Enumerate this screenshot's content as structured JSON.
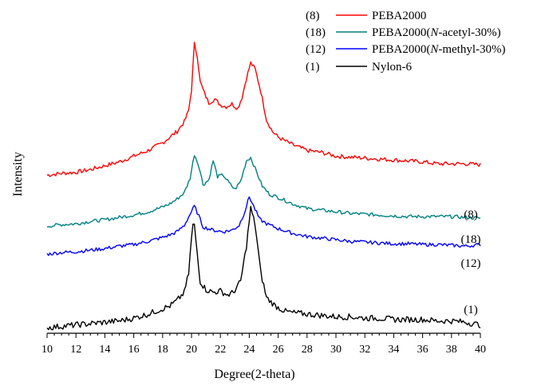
{
  "chart_data": {
    "type": "line",
    "title": "",
    "xlabel": "Degree(2-theta)",
    "ylabel": "Intensity",
    "xlim": [
      10,
      40
    ],
    "xticks": [
      10,
      12,
      14,
      16,
      18,
      20,
      22,
      24,
      26,
      28,
      30,
      32,
      34,
      36,
      38,
      40
    ],
    "ylim": [
      0,
      100
    ],
    "y_ticks_shown": false,
    "grid": false,
    "legend_position": "top-right",
    "series": [
      {
        "id": "8",
        "legend_number": "(8)",
        "curve_label": "(8)",
        "name": "PEBA2000",
        "name_parts": [
          {
            "text": "PEBA2000",
            "italic": false
          }
        ],
        "color": "#ff0000",
        "points": [
          [
            10,
            31
          ],
          [
            11,
            32
          ],
          [
            12,
            32.5
          ],
          [
            13,
            34
          ],
          [
            14,
            36
          ],
          [
            15,
            38
          ],
          [
            16,
            41
          ],
          [
            17,
            44
          ],
          [
            18,
            48
          ],
          [
            18.5,
            51
          ],
          [
            19,
            54
          ],
          [
            19.5,
            59
          ],
          [
            19.8,
            65
          ],
          [
            20.0,
            76
          ],
          [
            20.2,
            100
          ],
          [
            20.4,
            94
          ],
          [
            20.6,
            80
          ],
          [
            20.9,
            74
          ],
          [
            21.2,
            69
          ],
          [
            21.6,
            71
          ],
          [
            22.0,
            68
          ],
          [
            22.4,
            67
          ],
          [
            22.8,
            68.5
          ],
          [
            23.2,
            66
          ],
          [
            23.5,
            72
          ],
          [
            23.8,
            82
          ],
          [
            24.1,
            90
          ],
          [
            24.4,
            87
          ],
          [
            24.8,
            75
          ],
          [
            25.2,
            60
          ],
          [
            25.6,
            54
          ],
          [
            26,
            51
          ],
          [
            27,
            47
          ],
          [
            28,
            44
          ],
          [
            29,
            43
          ],
          [
            30,
            41
          ],
          [
            31,
            40.5
          ],
          [
            32,
            40
          ],
          [
            33,
            39.5
          ],
          [
            34,
            39
          ],
          [
            35,
            38.5
          ],
          [
            36,
            38
          ],
          [
            37,
            37
          ],
          [
            38,
            37
          ],
          [
            39,
            37
          ],
          [
            40,
            36.5
          ]
        ]
      },
      {
        "id": "18",
        "legend_number": "(18)",
        "curve_label": "(18)",
        "name": "PEBA2000(N-acetyl-30%)",
        "name_parts": [
          {
            "text": "PEBA2000(",
            "italic": false
          },
          {
            "text": "N",
            "italic": true
          },
          {
            "text": "-acetyl-30%)",
            "italic": false
          }
        ],
        "color": "#008080",
        "points": [
          [
            10,
            22
          ],
          [
            11,
            23
          ],
          [
            12,
            23.5
          ],
          [
            13,
            25
          ],
          [
            14,
            26
          ],
          [
            15,
            27.5
          ],
          [
            16,
            29
          ],
          [
            17,
            31
          ],
          [
            18,
            34
          ],
          [
            18.5,
            36
          ],
          [
            19,
            39
          ],
          [
            19.5,
            43
          ],
          [
            19.9,
            52
          ],
          [
            20.2,
            67
          ],
          [
            20.5,
            60
          ],
          [
            20.8,
            48
          ],
          [
            21.2,
            51
          ],
          [
            21.5,
            63
          ],
          [
            21.8,
            53
          ],
          [
            22.2,
            54
          ],
          [
            22.6,
            49
          ],
          [
            23.0,
            45
          ],
          [
            23.4,
            50
          ],
          [
            23.8,
            63
          ],
          [
            24.1,
            65
          ],
          [
            24.5,
            56
          ],
          [
            24.9,
            47
          ],
          [
            25.4,
            42
          ],
          [
            26,
            40
          ],
          [
            27,
            36
          ],
          [
            28,
            33
          ],
          [
            29,
            32
          ],
          [
            30,
            31
          ],
          [
            31,
            30
          ],
          [
            32,
            29.5
          ],
          [
            33,
            29
          ],
          [
            34,
            28.5
          ],
          [
            35,
            28
          ],
          [
            36,
            28
          ],
          [
            37,
            28
          ],
          [
            38,
            28
          ],
          [
            39,
            27.5
          ],
          [
            40,
            27
          ]
        ]
      },
      {
        "id": "12",
        "legend_number": "(12)",
        "curve_label": "(12)",
        "name": "PEBA2000(N-methyl-30%)",
        "name_parts": [
          {
            "text": "PEBA2000(",
            "italic": false
          },
          {
            "text": "N",
            "italic": true
          },
          {
            "text": "-methyl-30%)",
            "italic": false
          }
        ],
        "color": "#0000ff",
        "points": [
          [
            10,
            16
          ],
          [
            11,
            17
          ],
          [
            12,
            17.5
          ],
          [
            13,
            18.5
          ],
          [
            14,
            19.5
          ],
          [
            15,
            21
          ],
          [
            16,
            22
          ],
          [
            17,
            24
          ],
          [
            18,
            26.5
          ],
          [
            18.5,
            28
          ],
          [
            19,
            30
          ],
          [
            19.5,
            34
          ],
          [
            19.9,
            41
          ],
          [
            20.2,
            46
          ],
          [
            20.5,
            40
          ],
          [
            20.8,
            33
          ],
          [
            21.5,
            31
          ],
          [
            22.2,
            30
          ],
          [
            22.8,
            31
          ],
          [
            23.3,
            34
          ],
          [
            23.7,
            43
          ],
          [
            24.0,
            52
          ],
          [
            24.3,
            46
          ],
          [
            24.7,
            38
          ],
          [
            25.2,
            35
          ],
          [
            26,
            32
          ],
          [
            27,
            29
          ],
          [
            28,
            27
          ],
          [
            29,
            26
          ],
          [
            30,
            25
          ],
          [
            31,
            24
          ],
          [
            32,
            23.5
          ],
          [
            33,
            23
          ],
          [
            34,
            22.5
          ],
          [
            35,
            22.5
          ],
          [
            36,
            22
          ],
          [
            37,
            22
          ],
          [
            38,
            21.5
          ],
          [
            39,
            21
          ],
          [
            40,
            22
          ]
        ]
      },
      {
        "id": "1",
        "legend_number": "(1)",
        "curve_label": "(1)",
        "name": "Nylon-6",
        "name_parts": [
          {
            "text": "Nylon-6",
            "italic": false
          }
        ],
        "color": "#000000",
        "points": [
          [
            10,
            0
          ],
          [
            11,
            0.5
          ],
          [
            12,
            1
          ],
          [
            13,
            1.5
          ],
          [
            14,
            2
          ],
          [
            15,
            2.5
          ],
          [
            16,
            3.5
          ],
          [
            17,
            5
          ],
          [
            18,
            7
          ],
          [
            18.5,
            8
          ],
          [
            19,
            10
          ],
          [
            19.5,
            13
          ],
          [
            19.8,
            20
          ],
          [
            20.0,
            33
          ],
          [
            20.15,
            40
          ],
          [
            20.35,
            30
          ],
          [
            20.6,
            17
          ],
          [
            21.0,
            14
          ],
          [
            21.5,
            13
          ],
          [
            22.0,
            13.5
          ],
          [
            22.5,
            12
          ],
          [
            22.9,
            13
          ],
          [
            23.4,
            17
          ],
          [
            23.8,
            30
          ],
          [
            24.1,
            44
          ],
          [
            24.4,
            38
          ],
          [
            24.8,
            20
          ],
          [
            25.2,
            11
          ],
          [
            25.8,
            8
          ],
          [
            26.5,
            6
          ],
          [
            27,
            5.5
          ],
          [
            28,
            5
          ],
          [
            29,
            4.5
          ],
          [
            30,
            4
          ],
          [
            31,
            4
          ],
          [
            32,
            3.5
          ],
          [
            33,
            3.5
          ],
          [
            34,
            3
          ],
          [
            35,
            3
          ],
          [
            36,
            3
          ],
          [
            37,
            2.5
          ],
          [
            38,
            2.5
          ],
          [
            39,
            2
          ],
          [
            40,
            1
          ]
        ]
      }
    ]
  }
}
